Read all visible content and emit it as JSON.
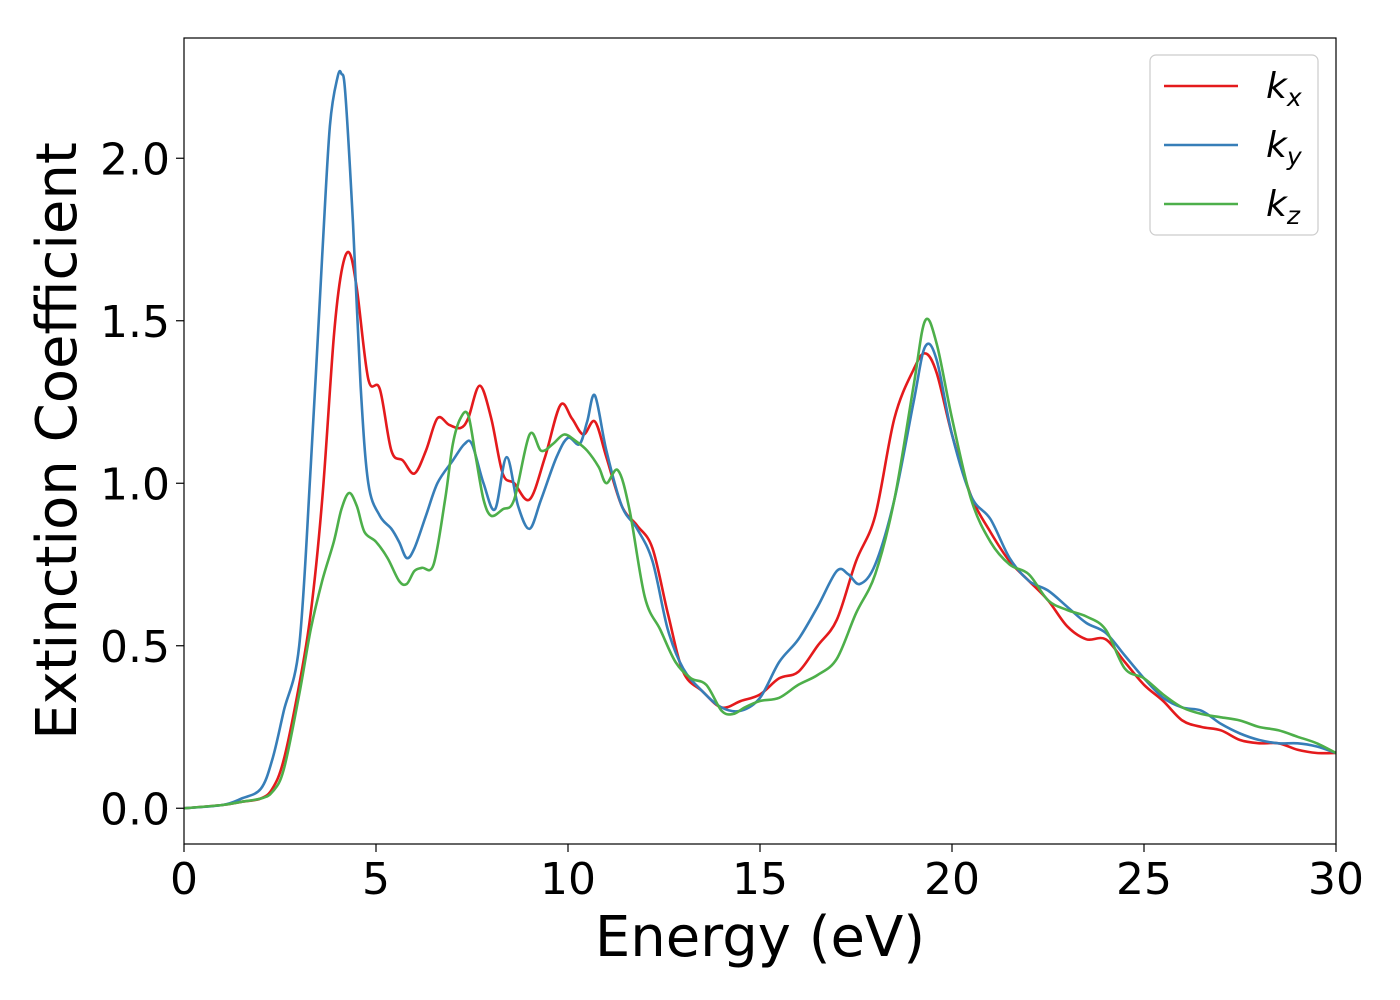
{
  "chart_data": {
    "type": "line",
    "title": "",
    "xlabel": "Energy (eV)",
    "ylabel": "Extinction Coefficient",
    "xlim": [
      0,
      30
    ],
    "ylim": [
      -0.11,
      2.37
    ],
    "xticks": [
      0,
      5,
      10,
      15,
      20,
      25,
      30
    ],
    "xtick_labels": [
      "0",
      "5",
      "10",
      "15",
      "20",
      "25",
      "30"
    ],
    "yticks": [
      0.0,
      0.5,
      1.0,
      1.5,
      2.0
    ],
    "ytick_labels": [
      "0.0",
      "0.5",
      "1.0",
      "1.5",
      "2.0"
    ],
    "grid": false,
    "legend_position": "top-right",
    "series": [
      {
        "name": "k",
        "subscript": "x",
        "color": "#e41a1c",
        "x": [
          0,
          1,
          1.5,
          2,
          2.3,
          2.6,
          3,
          3.3,
          3.6,
          3.9,
          4.1,
          4.3,
          4.5,
          4.8,
          5.1,
          5.4,
          5.7,
          6,
          6.3,
          6.6,
          6.9,
          7.2,
          7.4,
          7.7,
          8,
          8.3,
          8.6,
          9,
          9.4,
          9.8,
          10.1,
          10.4,
          10.7,
          11,
          11.4,
          11.8,
          12.2,
          12.6,
          13,
          13.5,
          14,
          14.5,
          15,
          15.5,
          16,
          16.5,
          17,
          17.5,
          18,
          18.5,
          19,
          19.3,
          19.6,
          20,
          20.5,
          21,
          21.5,
          22,
          22.5,
          23,
          23.5,
          24,
          24.5,
          25,
          25.5,
          26,
          26.5,
          27,
          27.5,
          28,
          28.5,
          29,
          29.5,
          30
        ],
        "y": [
          0,
          0.01,
          0.02,
          0.03,
          0.06,
          0.15,
          0.38,
          0.6,
          0.95,
          1.45,
          1.65,
          1.71,
          1.6,
          1.32,
          1.29,
          1.1,
          1.07,
          1.03,
          1.1,
          1.2,
          1.18,
          1.17,
          1.2,
          1.3,
          1.2,
          1.03,
          1.0,
          0.95,
          1.08,
          1.24,
          1.2,
          1.15,
          1.19,
          1.08,
          0.93,
          0.87,
          0.8,
          0.6,
          0.42,
          0.36,
          0.31,
          0.33,
          0.35,
          0.4,
          0.42,
          0.5,
          0.58,
          0.76,
          0.9,
          1.2,
          1.35,
          1.4,
          1.34,
          1.15,
          0.96,
          0.85,
          0.76,
          0.7,
          0.64,
          0.56,
          0.52,
          0.52,
          0.45,
          0.38,
          0.33,
          0.27,
          0.25,
          0.24,
          0.21,
          0.2,
          0.2,
          0.18,
          0.17,
          0.17
        ]
      },
      {
        "name": "k",
        "subscript": "y",
        "color": "#377eb8",
        "x": [
          0,
          1,
          1.5,
          2,
          2.3,
          2.6,
          3,
          3.3,
          3.6,
          3.8,
          4,
          4.1,
          4.2,
          4.4,
          4.6,
          4.8,
          5.1,
          5.4,
          5.6,
          5.8,
          6,
          6.3,
          6.6,
          7,
          7.3,
          7.5,
          7.8,
          8.1,
          8.4,
          8.7,
          9,
          9.3,
          9.7,
          10,
          10.3,
          10.5,
          10.7,
          11,
          11.4,
          11.8,
          12.2,
          12.6,
          13,
          13.5,
          14,
          14.5,
          15,
          15.5,
          16,
          16.5,
          17,
          17.3,
          17.6,
          18,
          18.5,
          19,
          19.3,
          19.6,
          20,
          20.5,
          21,
          21.5,
          22,
          22.5,
          23,
          23.5,
          24,
          24.5,
          25,
          25.5,
          26,
          26.5,
          27,
          27.5,
          28,
          28.5,
          29,
          29.5,
          30
        ],
        "y": [
          0,
          0.01,
          0.03,
          0.06,
          0.15,
          0.3,
          0.5,
          1.05,
          1.7,
          2.1,
          2.25,
          2.26,
          2.2,
          1.8,
          1.3,
          1.0,
          0.9,
          0.86,
          0.82,
          0.77,
          0.8,
          0.9,
          1.0,
          1.07,
          1.12,
          1.12,
          1.0,
          0.92,
          1.08,
          0.93,
          0.86,
          0.95,
          1.08,
          1.14,
          1.12,
          1.19,
          1.27,
          1.1,
          0.93,
          0.86,
          0.76,
          0.55,
          0.43,
          0.36,
          0.31,
          0.3,
          0.34,
          0.45,
          0.52,
          0.62,
          0.73,
          0.72,
          0.69,
          0.75,
          0.95,
          1.25,
          1.42,
          1.38,
          1.15,
          0.96,
          0.89,
          0.77,
          0.7,
          0.67,
          0.62,
          0.57,
          0.54,
          0.47,
          0.4,
          0.34,
          0.31,
          0.3,
          0.26,
          0.23,
          0.21,
          0.2,
          0.2,
          0.19,
          0.17
        ]
      },
      {
        "name": "k",
        "subscript": "z",
        "color": "#4daf4a",
        "x": [
          0,
          1,
          1.5,
          2,
          2.3,
          2.6,
          3,
          3.3,
          3.6,
          3.9,
          4.1,
          4.3,
          4.5,
          4.7,
          5,
          5.3,
          5.6,
          5.8,
          6,
          6.2,
          6.5,
          6.8,
          7,
          7.2,
          7.4,
          7.6,
          7.8,
          8,
          8.3,
          8.6,
          9,
          9.3,
          9.6,
          9.9,
          10.2,
          10.5,
          10.8,
          11,
          11.3,
          11.6,
          12,
          12.4,
          12.8,
          13.2,
          13.6,
          14,
          14.3,
          14.6,
          15,
          15.5,
          16,
          16.5,
          17,
          17.5,
          18,
          18.5,
          19,
          19.3,
          19.6,
          20,
          20.5,
          21,
          21.5,
          22,
          22.5,
          23,
          23.5,
          24,
          24.5,
          25,
          25.5,
          26,
          26.5,
          27,
          27.5,
          28,
          28.5,
          29,
          29.5,
          30
        ],
        "y": [
          0,
          0.01,
          0.02,
          0.03,
          0.05,
          0.12,
          0.35,
          0.55,
          0.7,
          0.82,
          0.92,
          0.97,
          0.93,
          0.85,
          0.82,
          0.77,
          0.7,
          0.69,
          0.73,
          0.74,
          0.75,
          0.95,
          1.12,
          1.2,
          1.21,
          1.08,
          0.95,
          0.9,
          0.92,
          0.95,
          1.15,
          1.1,
          1.12,
          1.15,
          1.13,
          1.1,
          1.05,
          1.0,
          1.04,
          0.92,
          0.65,
          0.55,
          0.45,
          0.4,
          0.38,
          0.3,
          0.29,
          0.31,
          0.33,
          0.34,
          0.38,
          0.41,
          0.46,
          0.6,
          0.72,
          0.95,
          1.3,
          1.5,
          1.43,
          1.2,
          0.95,
          0.82,
          0.75,
          0.72,
          0.64,
          0.61,
          0.59,
          0.55,
          0.43,
          0.4,
          0.35,
          0.31,
          0.29,
          0.28,
          0.27,
          0.25,
          0.24,
          0.22,
          0.2,
          0.17
        ]
      }
    ]
  }
}
